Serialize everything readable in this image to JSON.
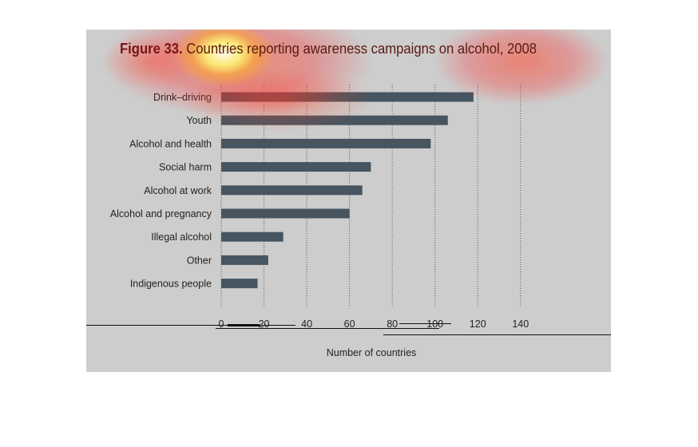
{
  "chart_data": {
    "type": "bar",
    "orientation": "horizontal",
    "title_prefix": "Figure 33.",
    "title": "Countries reporting awareness campaigns on alcohol, 2008",
    "categories": [
      "Drink–driving",
      "Youth",
      "Alcohol and health",
      "Social harm",
      "Alcohol at work",
      "Alcohol and pregnancy",
      "Illegal alcohol",
      "Other",
      "Indigenous people"
    ],
    "values": [
      118,
      106,
      98,
      70,
      66,
      60,
      29,
      22,
      17
    ],
    "xlabel": "Number of countries",
    "ylabel": "",
    "xlim": [
      0,
      140
    ],
    "xticks": [
      0,
      20,
      40,
      60,
      80,
      100,
      120,
      140
    ],
    "grid": "vertical dotted",
    "colors": {
      "bar": "#465560",
      "panel": "#cdcdcd",
      "title_accent": "#7a1414"
    }
  }
}
